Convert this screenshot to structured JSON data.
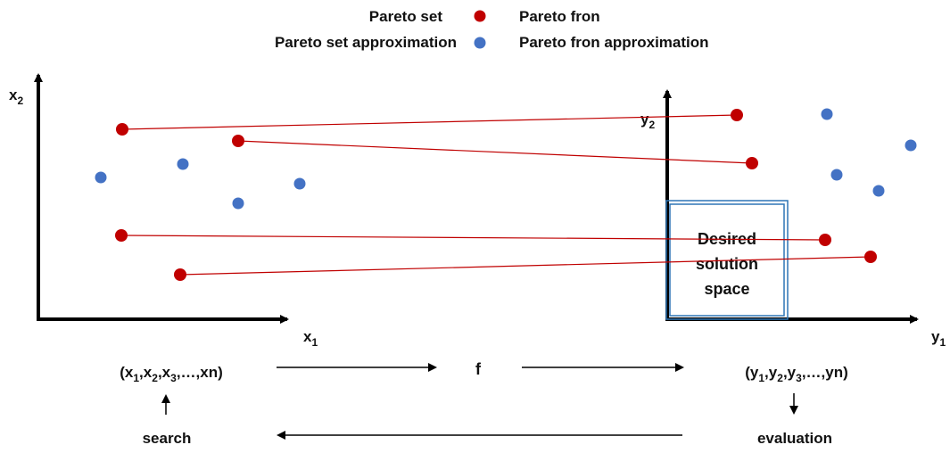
{
  "legend": {
    "pareto_set": "Pareto set",
    "pareto_front": "Pareto fron",
    "pareto_set_approx": "Pareto set approximation",
    "pareto_front_approx": "Pareto fron approximation"
  },
  "axes": {
    "x_axis_label": {
      "base": "x",
      "sub": "1"
    },
    "x2_axis_label": {
      "base": "x",
      "sub": "2"
    },
    "y_axis_label": {
      "base": "y",
      "sub": "1"
    },
    "y2_axis_label": {
      "base": "y",
      "sub": "2"
    }
  },
  "desired_region": {
    "lines": [
      "Desired",
      "solution",
      "space"
    ]
  },
  "flow": {
    "decision_vector": "(x1,x2,x3,…,xn)",
    "objective_vector": "(y1,y2,y3,…,yn)",
    "mapping": "f",
    "search": "search",
    "evaluation": "evaluation"
  },
  "colors": {
    "pareto": "#c00000",
    "approximation": "#4472c4",
    "region_border": "#2e75b6",
    "axis": "#000000"
  }
}
